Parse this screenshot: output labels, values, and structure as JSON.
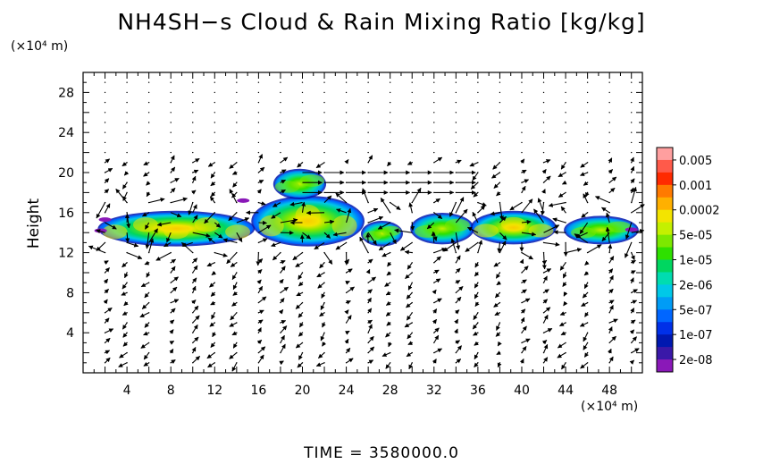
{
  "chart_data": {
    "type": "heatmap",
    "title": "NH4SH−s Cloud & Rain Mixing Ratio [kg/kg]",
    "ylabel": "Height",
    "x_unit": "(×10⁴ m)",
    "y_unit": "(×10⁴ m)",
    "footer": "TIME  =  3580000.0",
    "xlim": [
      0,
      51
    ],
    "ylim": [
      0,
      30
    ],
    "x_ticks": [
      4,
      8,
      12,
      16,
      20,
      24,
      28,
      32,
      36,
      40,
      44,
      48
    ],
    "y_ticks": [
      4,
      8,
      12,
      16,
      20,
      24,
      28
    ],
    "colorbar": {
      "labels": [
        "0.005",
        "0.001",
        "0.0002",
        "5e-05",
        "1e-05",
        "2e-06",
        "5e-07",
        "1e-07",
        "2e-08"
      ],
      "colors_top_to_bottom": [
        "#ff9f9f",
        "#ff5a4a",
        "#ff2a00",
        "#ff7a00",
        "#ffb000",
        "#f3e400",
        "#c4f000",
        "#7ce800",
        "#2ee000",
        "#00d660",
        "#00dcb0",
        "#00c8e8",
        "#009cf6",
        "#0066ff",
        "#0030e8",
        "#0018b0",
        "#3a18a8",
        "#8a18b8"
      ]
    },
    "regions": [
      {
        "x": [
          1.5,
          15.5
        ],
        "y": [
          12.8,
          16.0
        ],
        "peak": "5e-05"
      },
      {
        "x": [
          15.5,
          25.5
        ],
        "y": [
          12.8,
          17.5
        ],
        "peak": "0.0002"
      },
      {
        "x": [
          17.5,
          22
        ],
        "y": [
          17.5,
          20.2
        ],
        "peak": "1e-05"
      },
      {
        "x": [
          25.5,
          29
        ],
        "y": [
          12.8,
          15.0
        ],
        "peak": "1e-05"
      },
      {
        "x": [
          30,
          35.5
        ],
        "y": [
          13.0,
          15.8
        ],
        "peak": "1e-05"
      },
      {
        "x": [
          35.5,
          43
        ],
        "y": [
          13.0,
          16.0
        ],
        "peak": "5e-05"
      },
      {
        "x": [
          44,
          50.5
        ],
        "y": [
          13.0,
          15.5
        ],
        "peak": "1e-05"
      }
    ],
    "wind_vectors": "shown across domain; strong eastward flow near height 19, x 22-34",
    "grid": false
  }
}
